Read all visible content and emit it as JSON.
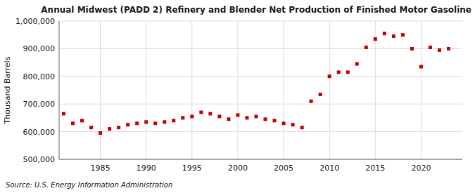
{
  "chart_data": {
    "type": "scatter",
    "title": "Annual Midwest (PADD 2) Refinery and Blender Net Production of Finished Motor Gasoline",
    "y_label": "Thousand Barrels",
    "source": "Source: U.S. Energy Information Administration",
    "x": [
      1981,
      1982,
      1983,
      1984,
      1985,
      1986,
      1987,
      1988,
      1989,
      1990,
      1991,
      1992,
      1993,
      1994,
      1995,
      1996,
      1997,
      1998,
      1999,
      2000,
      2001,
      2002,
      2003,
      2004,
      2005,
      2006,
      2007,
      2008,
      2009,
      2010,
      2011,
      2012,
      2013,
      2014,
      2015,
      2016,
      2017,
      2018,
      2019,
      2020,
      2021,
      2022,
      2023
    ],
    "values": [
      665000,
      630000,
      640000,
      615000,
      595000,
      610000,
      615000,
      625000,
      630000,
      635000,
      630000,
      635000,
      640000,
      650000,
      655000,
      670000,
      665000,
      655000,
      645000,
      660000,
      650000,
      655000,
      645000,
      640000,
      630000,
      625000,
      615000,
      710000,
      735000,
      800000,
      815000,
      815000,
      845000,
      905000,
      935000,
      955000,
      945000,
      950000,
      900000,
      835000,
      905000,
      895000,
      900000
    ],
    "color": "#cc0000",
    "marker": "square",
    "grid": true,
    "xlim": [
      1980.5,
      2024.5
    ],
    "xticks": [
      1985,
      1990,
      1995,
      2000,
      2005,
      2010,
      2015,
      2020
    ],
    "ylim": [
      500000,
      1000000
    ],
    "yticks": [
      {
        "value": 500000,
        "label": "500,000"
      },
      {
        "value": 600000,
        "label": "600,000"
      },
      {
        "value": 700000,
        "label": "700,000"
      },
      {
        "value": 800000,
        "label": "800,000"
      },
      {
        "value": 900000,
        "label": "900,000"
      },
      {
        "value": 1000000,
        "label": "1,000,000"
      }
    ]
  }
}
